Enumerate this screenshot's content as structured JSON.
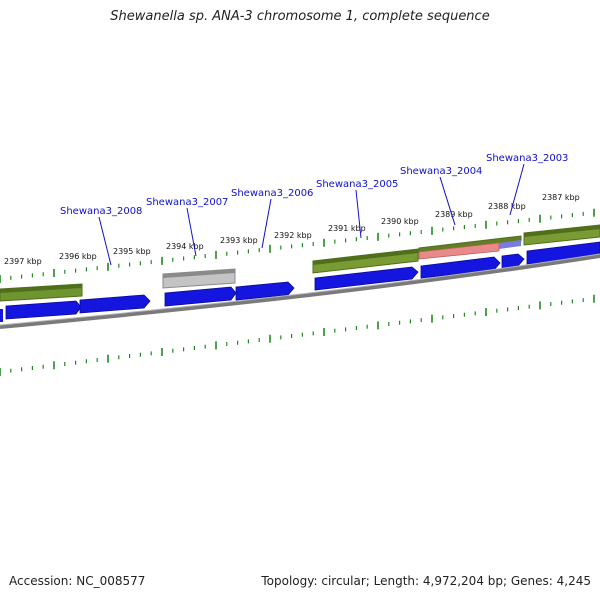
{
  "title": "Shewanella sp. ANA-3 chromosome 1, complete sequence",
  "footer": {
    "accession": "Accession: NC_008577",
    "summary": "Topology: circular; Length: 4,972,204 bp; Genes: 4,245"
  },
  "kbp_labels": [
    "2397 kbp",
    "2396 kbp",
    "2395 kbp",
    "2394 kbp",
    "2393 kbp",
    "2392 kbp",
    "2391 kbp",
    "2390 kbp",
    "2389 kbp",
    "2388 kbp",
    "2387 kbp"
  ],
  "gene_labels": [
    "Shewana3_2008",
    "Shewana3_2007",
    "Shewana3_2006",
    "Shewana3_2005",
    "Shewana3_2004",
    "Shewana3_2003"
  ],
  "colors": {
    "tick": "#1f8a1f",
    "cds": "#1010dd",
    "gene": "#6b8f2a",
    "pseudo": "#b0b0b0",
    "rna": "#e07a7a",
    "backbone": "#777777",
    "label": "#1010cc"
  }
}
